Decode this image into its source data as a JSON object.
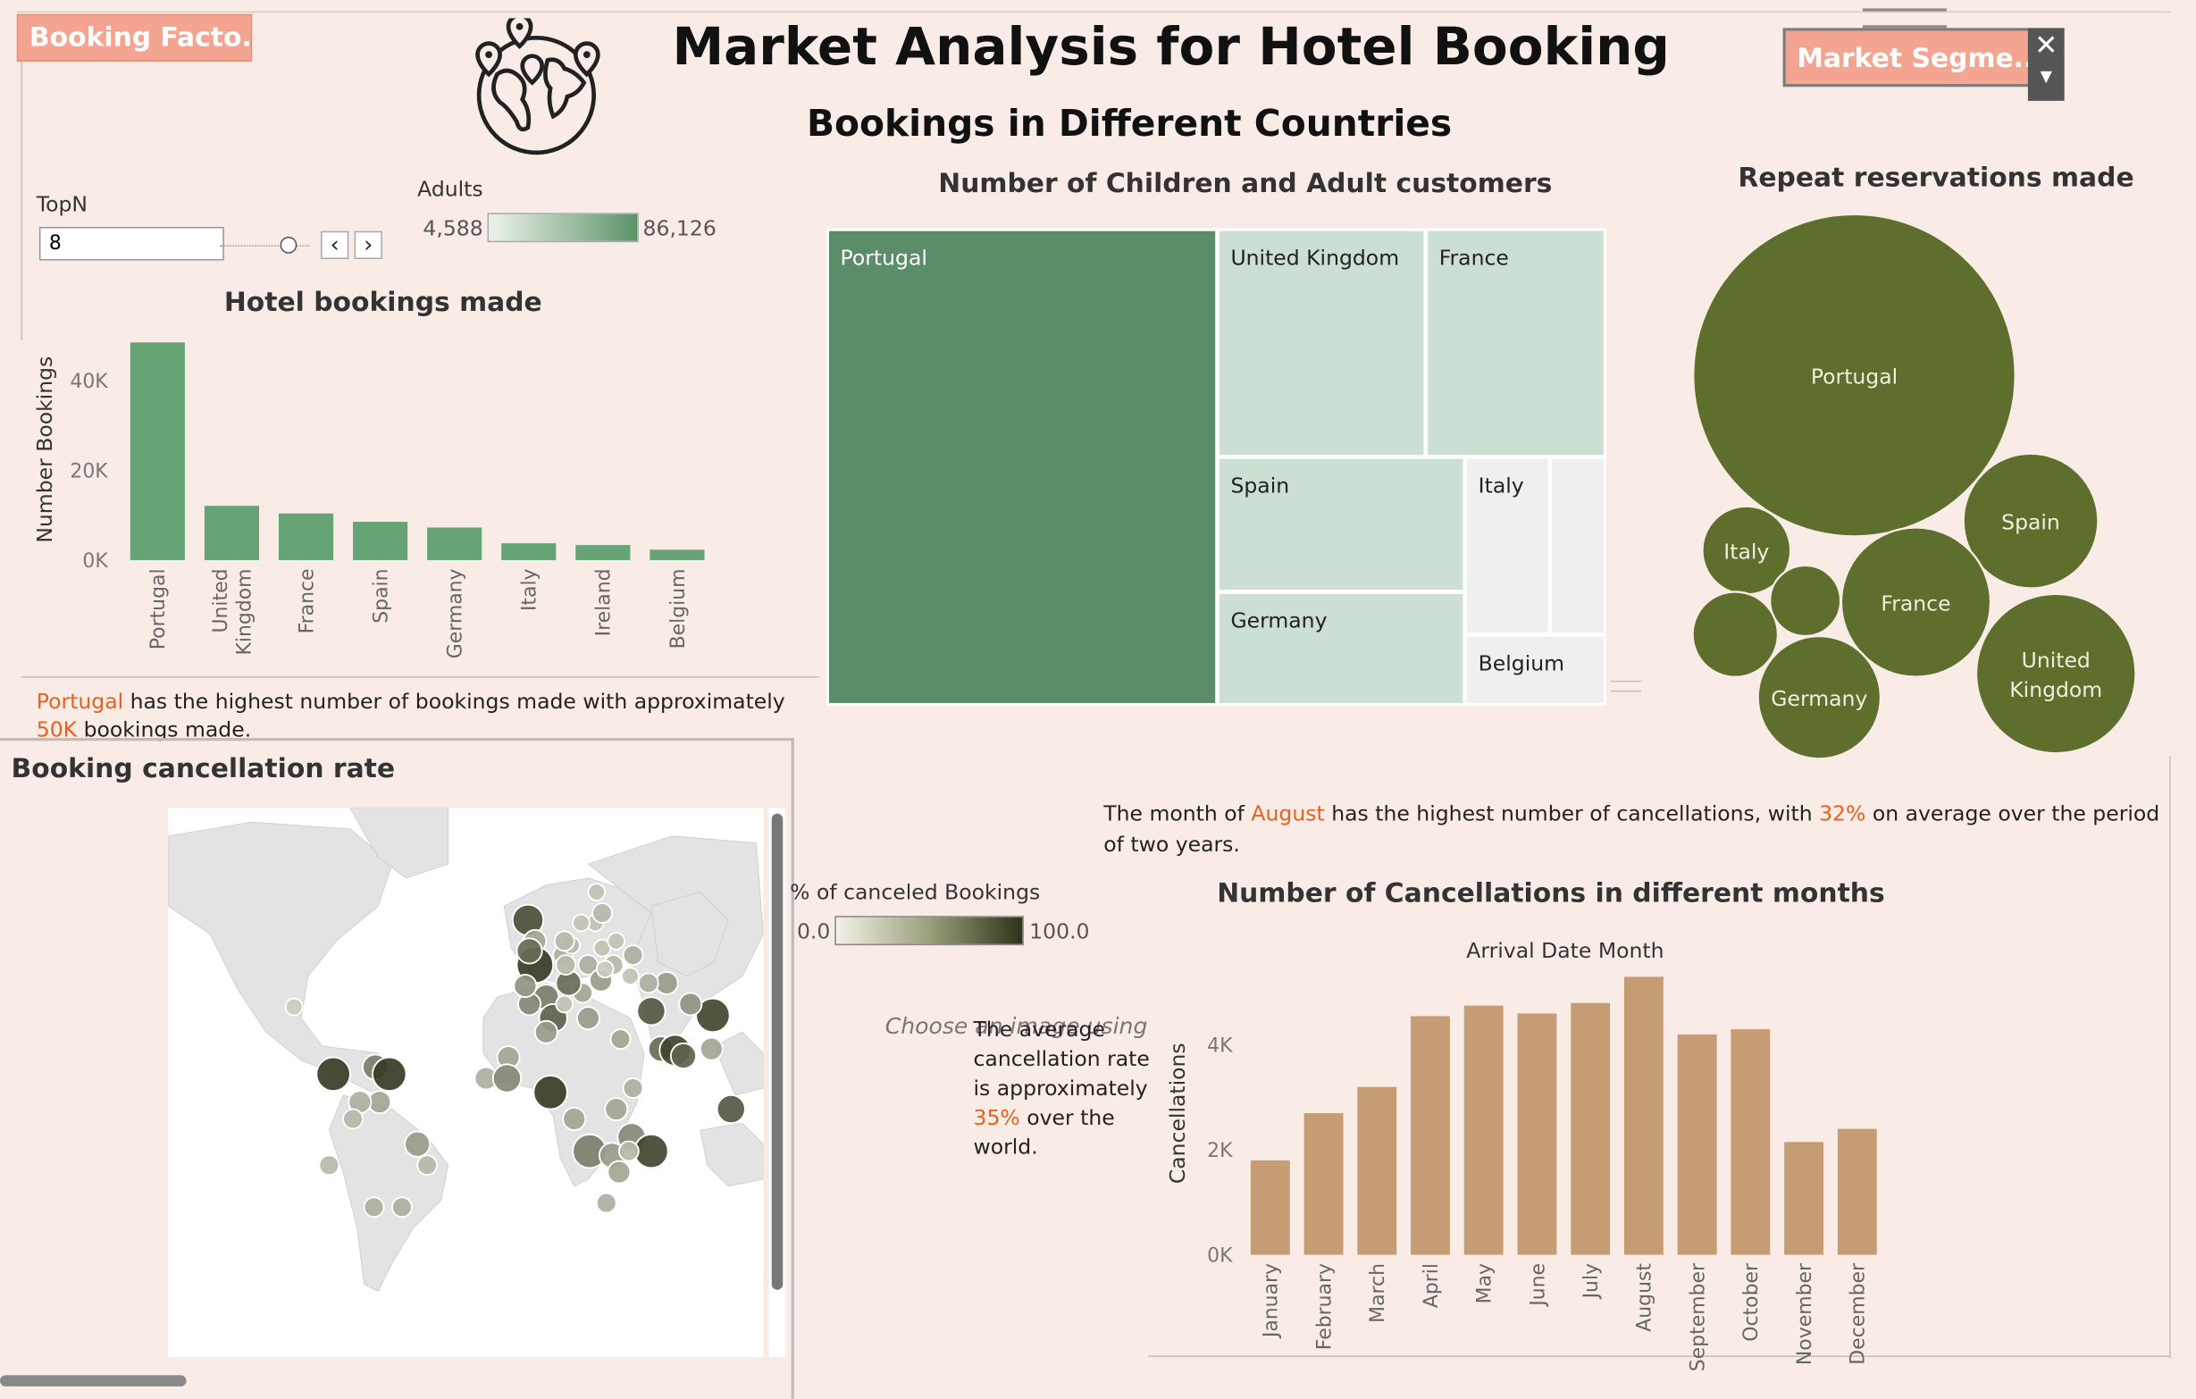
{
  "header": {
    "booking_factors_button": "Booking Facto...",
    "title": "Market Analysis for Hotel Booking",
    "subtitle": "Bookings in Different Countries",
    "market_segment_button": "Market Segme...",
    "globe_icon": "globe-with-pins-icon"
  },
  "controls": {
    "topn_label": "TopN",
    "topn_value": "8",
    "adults_label": "Adults",
    "adults_min": "4,588",
    "adults_max": "86,126"
  },
  "bookings_note": {
    "country": "Portugal",
    "text1": " has the highest number of bookings made with approximately ",
    "value": "50K",
    "text2": " bookings made."
  },
  "cancel_month_note": {
    "text1": "The month of ",
    "month": "August",
    "text2": " has the highest number of cancellations, with ",
    "value": "32%",
    "text3": " on average over the period of two years."
  },
  "map": {
    "title": "Booking cancellation rate",
    "legend_title": "% of canceled Bookings",
    "legend_min": "0.0",
    "legend_max": "100.0",
    "ghost_text": "Choose an image using th",
    "note_text1": "The average cancellation rate is approximately ",
    "note_value": "35%",
    "note_text2": " over the world.",
    "colors": {
      "low": "#f3f1e6",
      "high": "#2e321a"
    }
  },
  "chart_data": [
    {
      "type": "bar",
      "title": "Hotel bookings made",
      "ylabel": "Number Bookings",
      "xlabel": "",
      "categories": [
        "Portugal",
        "United Kingdom",
        "France",
        "Spain",
        "Germany",
        "Italy",
        "Ireland",
        "Belgium"
      ],
      "values": [
        48590,
        12129,
        10415,
        8568,
        7287,
        3766,
        3375,
        2342
      ],
      "yticks": [
        "0K",
        "20K",
        "40K"
      ],
      "ylim": [
        0,
        50000
      ],
      "color": "#66a475"
    },
    {
      "type": "treemap",
      "title": "Number of  Children and Adult customers",
      "items": [
        {
          "label": "Portugal",
          "value": 86126
        },
        {
          "label": "United Kingdom",
          "value": 22000
        },
        {
          "label": "France",
          "value": 19000
        },
        {
          "label": "Spain",
          "value": 15500
        },
        {
          "label": "Germany",
          "value": 13000
        },
        {
          "label": "Italy",
          "value": 7000
        },
        {
          "label": "Belgium",
          "value": 4588
        },
        {
          "label": "",
          "value": 4600
        }
      ],
      "colors": {
        "dark": "#5b8d68",
        "light": "#ccdfd3",
        "grey": "#efefef"
      }
    },
    {
      "type": "bubble",
      "title": "Repeat reservations made",
      "items": [
        {
          "label": "Portugal",
          "value": 100
        },
        {
          "label": "Spain",
          "value": 17.5
        },
        {
          "label": "France",
          "value": 21.5
        },
        {
          "label": "United Kingdom",
          "value": 24.5
        },
        {
          "label": "Germany",
          "value": 14.5
        },
        {
          "label": "Italy",
          "value": 7.5
        },
        {
          "label": "",
          "value": 4.8
        },
        {
          "label": "",
          "value": 7
        }
      ],
      "color": "#5e6e2c"
    },
    {
      "type": "bar",
      "title": "Number of Cancellations in different months",
      "xlabel": "Arrival Date Month",
      "ylabel": "Cancellations",
      "categories": [
        "January",
        "February",
        "March",
        "April",
        "May",
        "June",
        "July",
        "August",
        "September",
        "October",
        "November",
        "December"
      ],
      "values": [
        1800,
        2700,
        3200,
        4550,
        4750,
        4600,
        4800,
        5300,
        4200,
        4300,
        2150,
        2400
      ],
      "yticks": [
        "0K",
        "2K",
        "4K"
      ],
      "ylim": [
        0,
        5500
      ],
      "color": "#c69c74"
    }
  ]
}
